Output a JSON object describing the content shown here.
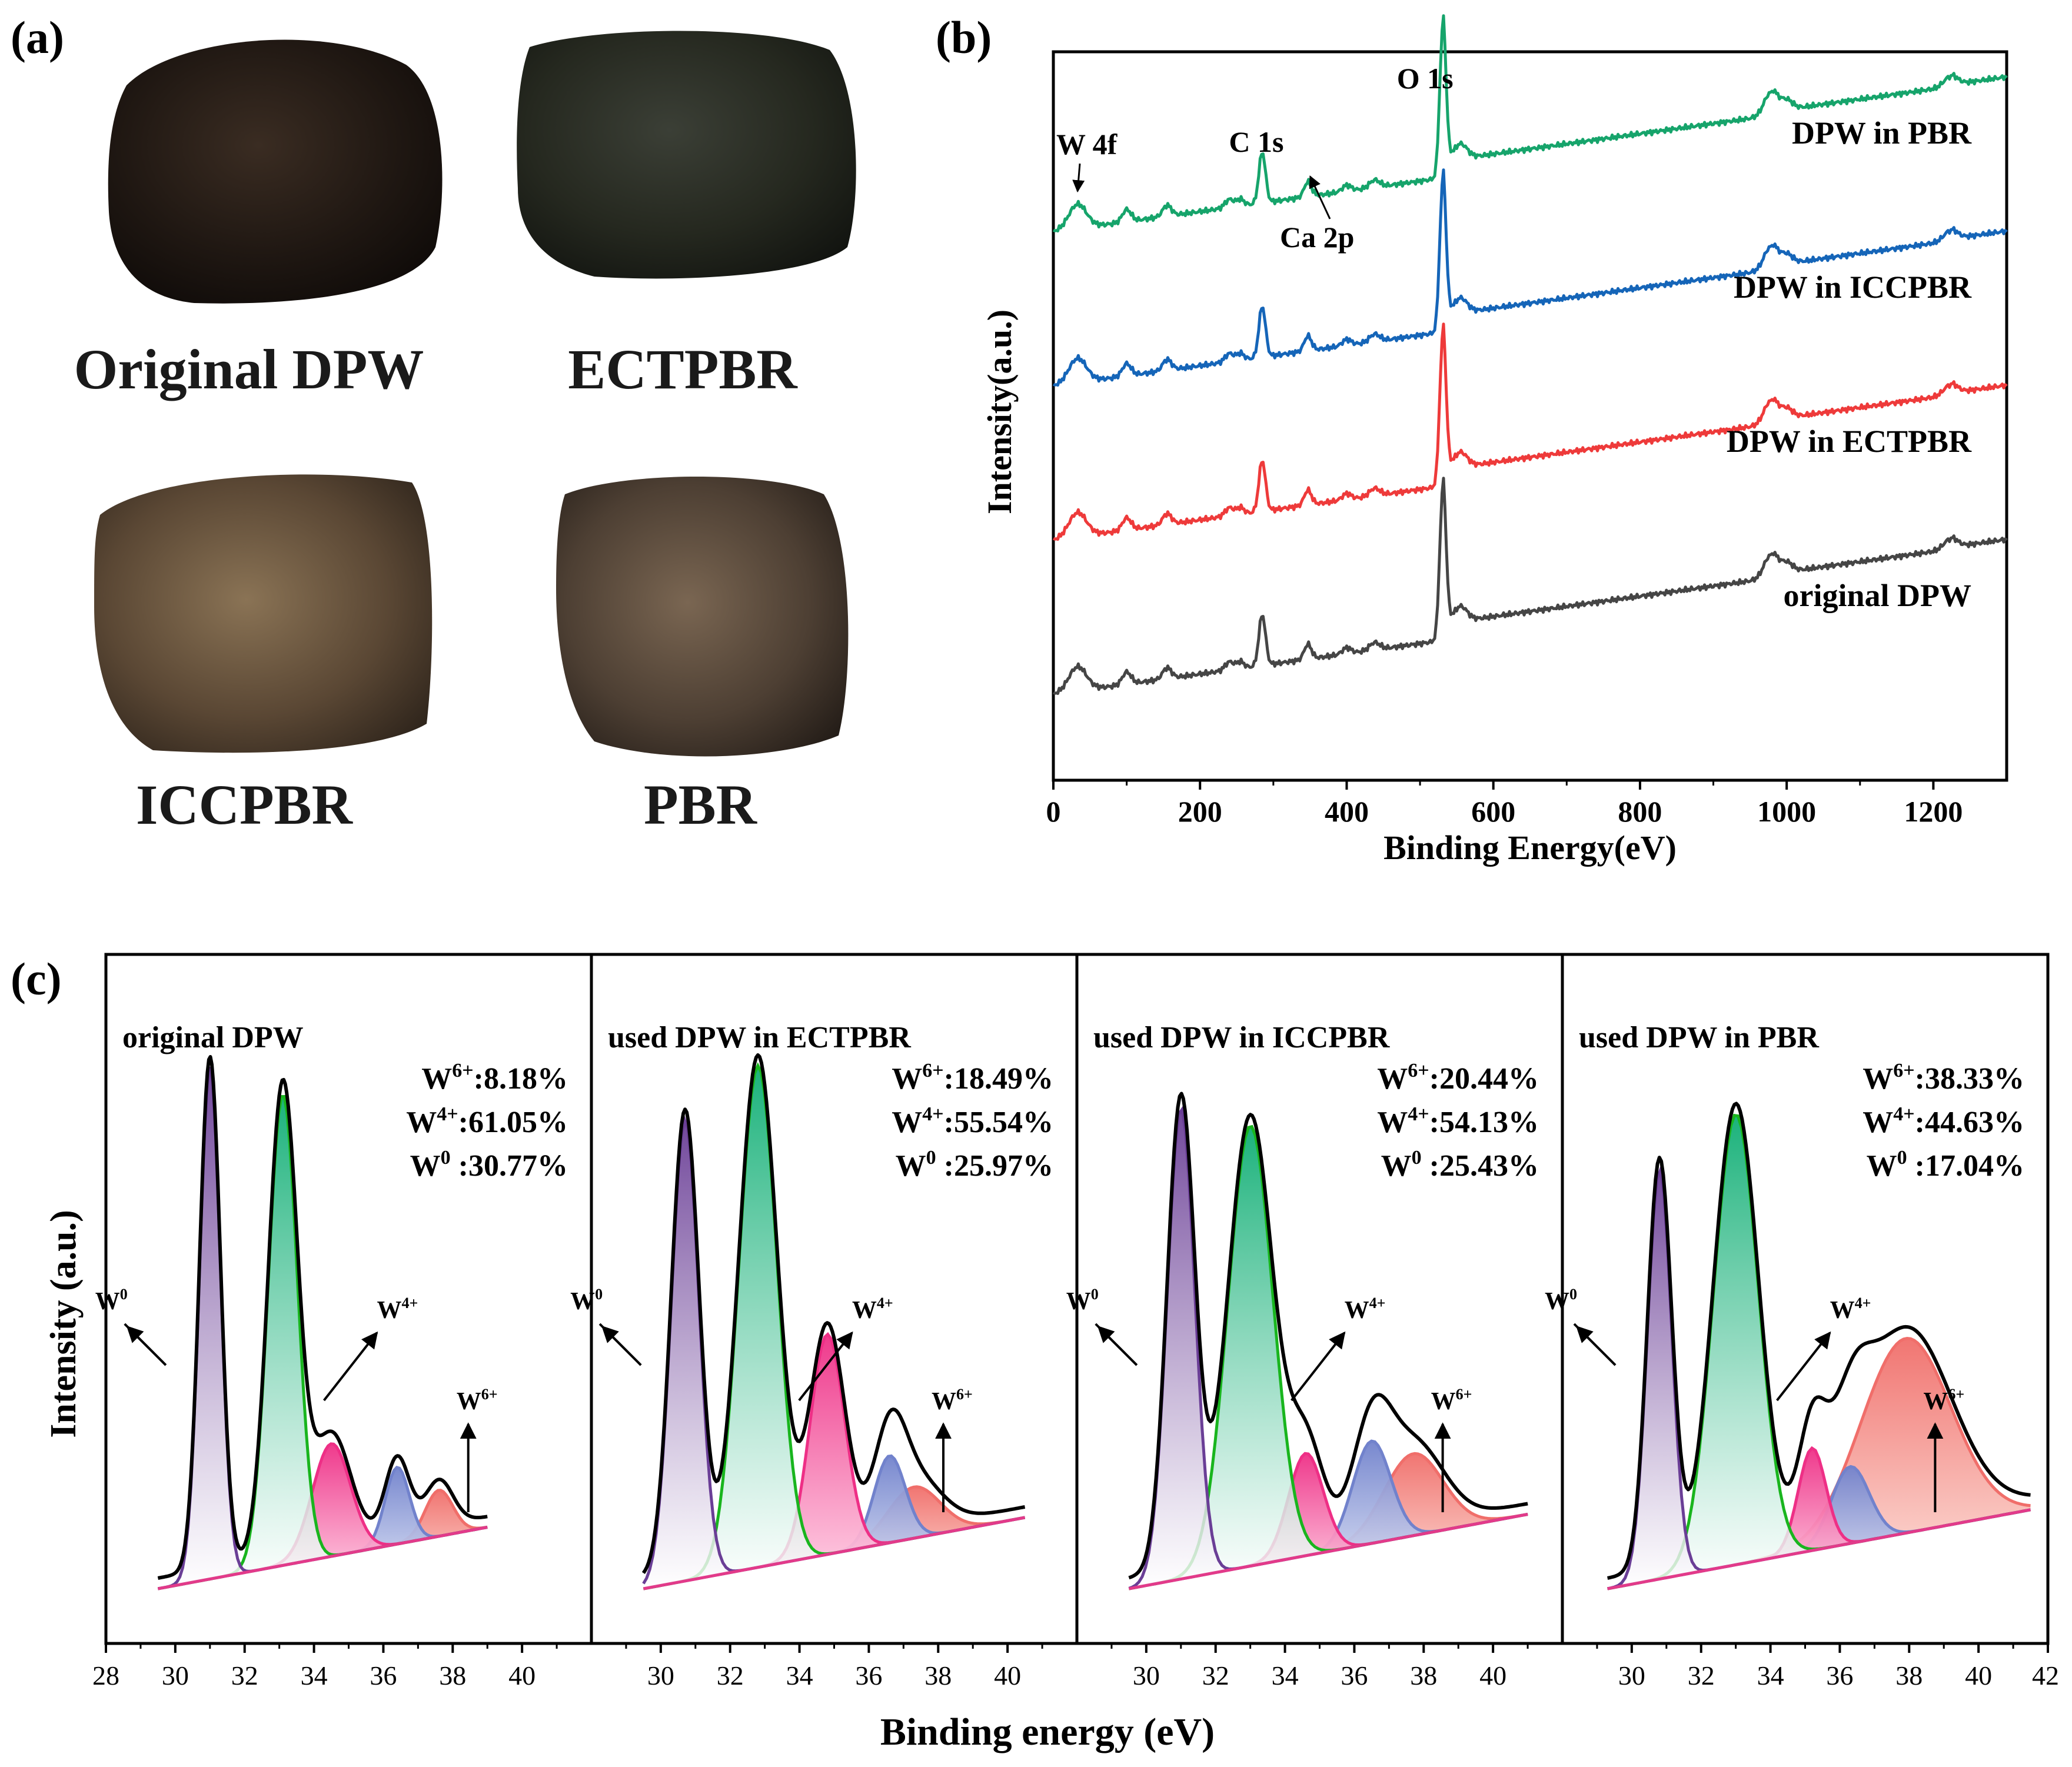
{
  "panel_a": {
    "label": "(a)",
    "samples": [
      {
        "caption": "Original DPW",
        "tone": "#241a14"
      },
      {
        "caption": "ECTPBR",
        "tone": "#2a2d26"
      },
      {
        "caption": "ICCPBR",
        "tone": "#5c4a36"
      },
      {
        "caption": "PBR",
        "tone": "#4b3e33"
      }
    ]
  },
  "panel_b_label": "(b)",
  "panel_c_label": "(c)",
  "colors": {
    "green_series": "#16a46b",
    "blue_series": "#1565b8",
    "red_series": "#ee3a3a",
    "gray_series": "#454545",
    "w0_fill": "#7a4fa3",
    "w4_fill": "#15b27a",
    "w4_pink_fill": "#ef3f8f",
    "w_blue_fill": "#8a9ad6",
    "w6_fill": "#f28a80",
    "envelope": "#000000"
  },
  "chart_data": [
    {
      "id": "survey",
      "type": "line",
      "title": "",
      "xlabel": "Binding Energy(eV)",
      "ylabel": "Intensity(a.u.)",
      "xlim": [
        0,
        1300
      ],
      "xticks": [
        0,
        200,
        400,
        600,
        800,
        1000,
        1200
      ],
      "yticks_shown": false,
      "peaks": [
        {
          "label": "W 4f",
          "x": 33
        },
        {
          "label": "C 1s",
          "x": 284.8
        },
        {
          "label": "Ca 2p",
          "x": 347
        },
        {
          "label": "O 1s",
          "x": 531
        }
      ],
      "series": [
        {
          "name": "DPW in PBR",
          "color": "#16a46b",
          "offset": 3.0
        },
        {
          "name": "DPW in ICCPBR",
          "color": "#1565b8",
          "offset": 2.0
        },
        {
          "name": "DPW in ECTPBR",
          "color": "#ee3a3a",
          "offset": 1.0
        },
        {
          "name": "original DPW",
          "color": "#454545",
          "offset": 0.0
        }
      ]
    },
    {
      "id": "w4f",
      "type": "area",
      "xlabel": "Binding energy (eV)",
      "ylabel": "Intensity (a.u.)",
      "xlim": [
        28,
        42
      ],
      "xticks": [
        28,
        30,
        32,
        34,
        36,
        38,
        40
      ],
      "last_tick": 42,
      "component_labels": {
        "w0": "W",
        "w0_sup": "0",
        "w4": "W",
        "w4_sup": "4+",
        "w6": "W",
        "w6_sup": "6+"
      },
      "panels": [
        {
          "title": "original DPW",
          "stats": [
            {
              "base": "W",
              "sup": "6+",
              "value": ":8.18%"
            },
            {
              "base": "W",
              "sup": "4+",
              "value": ":61.05%"
            },
            {
              "base": "W",
              "sup": "0",
              "value": " :30.77%"
            }
          ],
          "x_range": [
            29.5,
            39.0
          ],
          "peaks": [
            {
              "kind": "w0",
              "center": 31.0,
              "width": 0.3,
              "height": 1.0
            },
            {
              "kind": "w4",
              "center": 33.1,
              "width": 0.42,
              "height": 0.92
            },
            {
              "kind": "w4b",
              "center": 34.5,
              "width": 0.55,
              "height": 0.22
            },
            {
              "kind": "wb",
              "center": 36.4,
              "width": 0.35,
              "height": 0.15
            },
            {
              "kind": "w6",
              "center": 37.6,
              "width": 0.4,
              "height": 0.09
            }
          ]
        },
        {
          "title": "used DPW in ECTPBR",
          "stats": [
            {
              "base": "W",
              "sup": "6+",
              "value": ":18.49%"
            },
            {
              "base": "W",
              "sup": "4+",
              "value": ":55.54%"
            },
            {
              "base": "W",
              "sup": "0",
              "value": " :25.97%"
            }
          ],
          "x_range": [
            29.5,
            40.5
          ],
          "peaks": [
            {
              "kind": "w0",
              "center": 30.7,
              "width": 0.4,
              "height": 0.9
            },
            {
              "kind": "w4",
              "center": 32.8,
              "width": 0.55,
              "height": 0.98
            },
            {
              "kind": "w4b",
              "center": 34.8,
              "width": 0.5,
              "height": 0.43
            },
            {
              "kind": "wb",
              "center": 36.6,
              "width": 0.45,
              "height": 0.17
            },
            {
              "kind": "w6",
              "center": 37.3,
              "width": 0.75,
              "height": 0.1
            }
          ]
        },
        {
          "title": "used DPW in ICCPBR",
          "stats": [
            {
              "base": "W",
              "sup": "6+",
              "value": ":20.44%"
            },
            {
              "base": "W",
              "sup": "4+",
              "value": ":54.13%"
            },
            {
              "base": "W",
              "sup": "0",
              "value": " :25.43%"
            }
          ],
          "x_range": [
            29.5,
            41.0
          ],
          "peaks": [
            {
              "kind": "w0",
              "center": 31.0,
              "width": 0.4,
              "height": 0.92
            },
            {
              "kind": "w4",
              "center": 33.0,
              "width": 0.65,
              "height": 0.86
            },
            {
              "kind": "w4b",
              "center": 34.6,
              "width": 0.5,
              "height": 0.2
            },
            {
              "kind": "wb",
              "center": 36.5,
              "width": 0.55,
              "height": 0.2
            },
            {
              "kind": "w6",
              "center": 37.7,
              "width": 0.85,
              "height": 0.16
            }
          ]
        },
        {
          "title": "used DPW in PBR",
          "stats": [
            {
              "base": "W",
              "sup": "6+",
              "value": ":38.33%"
            },
            {
              "base": "W",
              "sup": "4+",
              "value": ":44.63%"
            },
            {
              "base": "W",
              "sup": "0",
              "value": " :17.04%"
            }
          ],
          "x_range": [
            29.3,
            41.5
          ],
          "peaks": [
            {
              "kind": "w0",
              "center": 30.8,
              "width": 0.35,
              "height": 0.8
            },
            {
              "kind": "w4",
              "center": 33.0,
              "width": 0.65,
              "height": 0.88
            },
            {
              "kind": "w4b",
              "center": 35.2,
              "width": 0.4,
              "height": 0.2
            },
            {
              "kind": "wb",
              "center": 36.3,
              "width": 0.55,
              "height": 0.15
            },
            {
              "kind": "w6",
              "center": 37.9,
              "width": 1.3,
              "height": 0.38
            }
          ]
        }
      ]
    }
  ]
}
